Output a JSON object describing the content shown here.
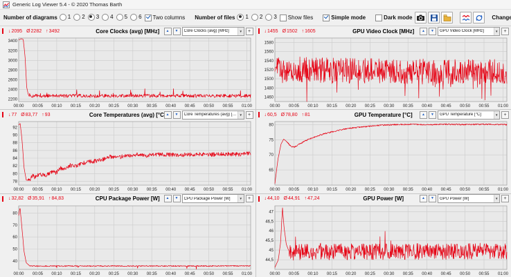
{
  "window": {
    "title": "Generic Log Viewer 5.4 - © 2020 Thomas Barth"
  },
  "toolbar": {
    "diagrams": {
      "label": "Number of diagrams",
      "options": [
        "1",
        "2",
        "3",
        "4",
        "5",
        "6"
      ],
      "selected": "3"
    },
    "two_columns": {
      "label": "Two columns",
      "checked": true
    },
    "files": {
      "label": "Number of files",
      "options": [
        "1",
        "2",
        "3"
      ],
      "selected": "1"
    },
    "show_files": {
      "label": "Show files",
      "checked": false
    },
    "simple_mode": {
      "label": "Simple mode",
      "checked": true
    },
    "dark_mode": {
      "label": "Dark mode",
      "checked": false
    },
    "change_all_label": "Change all",
    "icon_names": [
      "camera-icon",
      "save-icon",
      "report-icon",
      "line-colors-icon",
      "refresh-icon",
      "arrow-down-icon",
      "arrow-up-icon"
    ]
  },
  "chart_controls": {
    "move_up_glyph": "▲",
    "move_down_glyph": "▼",
    "add_glyph": "+",
    "dropdown_arrow_glyph": "▼",
    "min_symbol": "↓",
    "avg_symbol": "Ø",
    "max_symbol": "↑"
  },
  "x_axis": {
    "ticks": [
      0,
      5,
      10,
      15,
      20,
      25,
      30,
      35,
      40,
      45,
      50,
      55,
      60
    ],
    "labels": [
      "00:00",
      "00:05",
      "00:10",
      "00:15",
      "00:20",
      "00:25",
      "00:30",
      "00:35",
      "00:40",
      "00:45",
      "00:50",
      "00:55",
      "01:00"
    ]
  },
  "chart_data": [
    {
      "type": "line",
      "title": "Core Clocks (avg) [MHz]",
      "dropdown": "Core Clocks (avg) [MHz]",
      "stats": {
        "min": "2095",
        "avg": "2282",
        "max": "3492"
      },
      "color": "#e60012",
      "xlim": [
        0,
        61
      ],
      "ylim": [
        2150,
        3460
      ],
      "yticks": [
        2200,
        2400,
        2600,
        2800,
        3000,
        3200,
        3400
      ],
      "ytick_labels": [
        "2200",
        "2400",
        "2600",
        "2800",
        "3000",
        "3200",
        "3400"
      ],
      "keypoints": [
        [
          0,
          3420
        ],
        [
          0.7,
          3445
        ],
        [
          1.2,
          3430
        ],
        [
          1.7,
          3050
        ],
        [
          2.1,
          2450
        ],
        [
          2.5,
          2300
        ],
        [
          3.2,
          2268
        ],
        [
          61,
          2268
        ]
      ],
      "noise": 36,
      "noise_start": 2.5,
      "spike_chance": 0.03,
      "spike_mag": 140
    },
    {
      "type": "line",
      "title": "GPU Video Clock [MHz]",
      "dropdown": "GPU Video Clock [MHz]",
      "stats": {
        "min": "1455",
        "avg": "1502",
        "max": "1605"
      },
      "color": "#e60012",
      "xlim": [
        0,
        61
      ],
      "ylim": [
        1450,
        1590
      ],
      "yticks": [
        1460,
        1480,
        1500,
        1520,
        1540,
        1560,
        1580
      ],
      "ytick_labels": [
        "1460",
        "1480",
        "1500",
        "1520",
        "1540",
        "1560",
        "1580"
      ],
      "keypoints": [
        [
          0,
          1495
        ],
        [
          0.6,
          1522
        ],
        [
          30,
          1516
        ],
        [
          61,
          1516
        ]
      ],
      "noise": 28,
      "noise_start": 0,
      "spike_chance": 0.06,
      "spike_mag": -55
    },
    {
      "type": "line",
      "title": "Core Temperatures (avg) [°C]",
      "dropdown": "Core Temperatures (avg) [°C]",
      "stats": {
        "min": "77",
        "avg": "83,77",
        "max": "93"
      },
      "color": "#e60012",
      "xlim": [
        0,
        61
      ],
      "ylim": [
        77,
        93.5
      ],
      "yticks": [
        78,
        80,
        82,
        84,
        86,
        88,
        90,
        92
      ],
      "ytick_labels": [
        "78",
        "80",
        "82",
        "84",
        "86",
        "88",
        "90",
        "92"
      ],
      "keypoints": [
        [
          0,
          92.6
        ],
        [
          0.4,
          93
        ],
        [
          0.9,
          88.5
        ],
        [
          1.4,
          81.5
        ],
        [
          2,
          78.3
        ],
        [
          2.8,
          78.2
        ],
        [
          3.6,
          79.4
        ],
        [
          4.5,
          79
        ],
        [
          5.5,
          80
        ],
        [
          7,
          79.3
        ],
        [
          8.5,
          80.4
        ],
        [
          10,
          80.2
        ],
        [
          11,
          81.4
        ],
        [
          12.5,
          81.2
        ],
        [
          13.5,
          82.2
        ],
        [
          15,
          81.8
        ],
        [
          16.5,
          82.6
        ],
        [
          18,
          83
        ],
        [
          20,
          83.2
        ],
        [
          22,
          83.6
        ],
        [
          24,
          84.4
        ],
        [
          26,
          84.2
        ],
        [
          28,
          84.6
        ],
        [
          30,
          84.9
        ],
        [
          34,
          84.7
        ],
        [
          38,
          85
        ],
        [
          42,
          84.8
        ],
        [
          46,
          85
        ],
        [
          50,
          84.9
        ],
        [
          54,
          85.1
        ],
        [
          58,
          85
        ],
        [
          61,
          85.2
        ]
      ],
      "noise": 0.55,
      "noise_start": 2.4
    },
    {
      "type": "line",
      "title": "GPU Temperature [°C]",
      "dropdown": "GPU Temperature [°C]",
      "stats": {
        "min": "60,5",
        "avg": "78,80",
        "max": "81"
      },
      "color": "#e60012",
      "xlim": [
        0,
        61
      ],
      "ylim": [
        60,
        81
      ],
      "yticks": [
        65,
        70,
        75,
        80
      ],
      "ytick_labels": [
        "65",
        "70",
        "75",
        "80"
      ],
      "keypoints": [
        [
          0,
          60.5
        ],
        [
          0.8,
          68.5
        ],
        [
          1.6,
          73.5
        ],
        [
          2.3,
          75.2
        ],
        [
          3.2,
          74.3
        ],
        [
          4.2,
          72.8
        ],
        [
          5.2,
          72.6
        ],
        [
          6.2,
          73.4
        ],
        [
          7.5,
          74.3
        ],
        [
          9,
          75.2
        ],
        [
          11,
          76.2
        ],
        [
          13,
          77
        ],
        [
          15,
          77.6
        ],
        [
          17,
          78.2
        ],
        [
          19,
          78.7
        ],
        [
          22,
          79.1
        ],
        [
          25,
          79.5
        ],
        [
          28,
          79.8
        ],
        [
          32,
          80
        ],
        [
          36,
          80.1
        ],
        [
          40,
          80
        ],
        [
          45,
          80.1
        ],
        [
          50,
          80
        ],
        [
          55,
          80.1
        ],
        [
          61,
          80
        ]
      ],
      "noise": 0.22,
      "noise_start": 3
    },
    {
      "type": "line",
      "title": "CPU Package Power [W]",
      "dropdown": "CPU Package Power [W]",
      "stats": {
        "min": "32,82",
        "avg": "35,91",
        "max": "84,83"
      },
      "color": "#e60012",
      "xlim": [
        0,
        61
      ],
      "ylim": [
        33,
        86
      ],
      "yticks": [
        40,
        50,
        60,
        70,
        80
      ],
      "ytick_labels": [
        "40",
        "50",
        "60",
        "70",
        "80"
      ],
      "keypoints": [
        [
          0,
          78
        ],
        [
          0.35,
          84.8
        ],
        [
          0.9,
          66
        ],
        [
          1.4,
          48
        ],
        [
          2,
          38.5
        ],
        [
          2.8,
          36.2
        ],
        [
          4,
          35.8
        ],
        [
          61,
          35.9
        ]
      ],
      "noise": 0.45,
      "noise_start": 2.8,
      "spike_chance": 0.012,
      "spike_mag": -2.6
    },
    {
      "type": "line",
      "title": "GPU Power [W]",
      "dropdown": "GPU Power [W]",
      "stats": {
        "min": "44,10",
        "avg": "44,91",
        "max": "47,24"
      },
      "color": "#e60012",
      "xlim": [
        0,
        61
      ],
      "ylim": [
        44,
        47.3
      ],
      "yticks": [
        44.5,
        45,
        45.5,
        46,
        46.5,
        47
      ],
      "ytick_labels": [
        "44,5",
        "45",
        "45,5",
        "46",
        "46,5",
        "47"
      ],
      "keypoints": [
        [
          0,
          44.1
        ],
        [
          0.9,
          44.5
        ],
        [
          1.5,
          45.4
        ],
        [
          2,
          47.2
        ],
        [
          2.4,
          46.2
        ],
        [
          3,
          45.3
        ],
        [
          3.8,
          44.9
        ],
        [
          61,
          44.95
        ]
      ],
      "noise": 0.42,
      "noise_start": 3.8,
      "spike_chance": 0.02,
      "spike_mag": 0.8
    }
  ]
}
